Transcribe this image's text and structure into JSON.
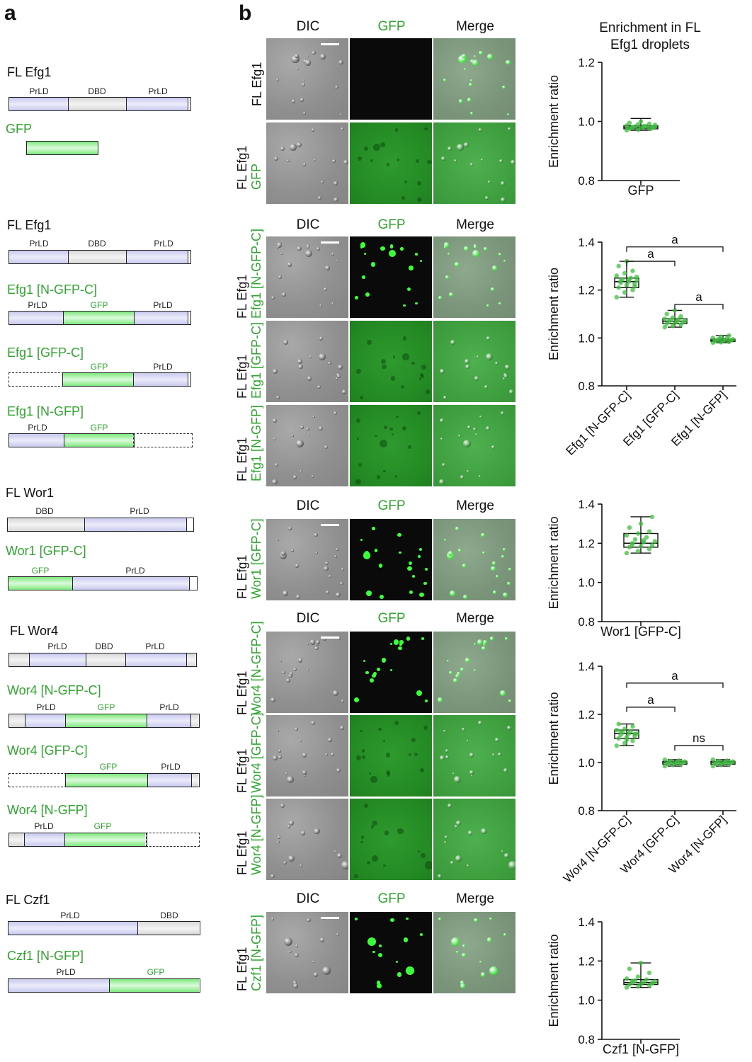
{
  "panel_a": {
    "letter": "a",
    "constructs": [
      {
        "title": "FL Efg1",
        "green": false
      },
      {
        "title": "GFP",
        "green": true
      },
      {
        "title": "FL Efg1",
        "green": false
      },
      {
        "title": "Efg1 [N-GFP-C]",
        "green": true
      },
      {
        "title": "Efg1 [GFP-C]",
        "green": true
      },
      {
        "title": "Efg1 [N-GFP]",
        "green": true
      },
      {
        "title": "FL Wor1",
        "green": false
      },
      {
        "title": "Wor1 [GFP-C]",
        "green": true
      },
      {
        "title": "FL Wor4",
        "green": false
      },
      {
        "title": "Wor4 [N-GFP-C]",
        "green": true
      },
      {
        "title": "Wor4 [GFP-C]",
        "green": true
      },
      {
        "title": "Wor4 [N-GFP]",
        "green": true
      },
      {
        "title": "FL Czf1",
        "green": false
      },
      {
        "title": "Czf1 [N-GFP]",
        "green": true
      }
    ],
    "domain_labels": {
      "prld": "PrLD",
      "dbd": "DBD",
      "gfp": "GFP"
    }
  },
  "panel_b": {
    "letter": "b",
    "columns": {
      "dic": "DIC",
      "gfp": "GFP",
      "merge": "Merge"
    },
    "row_labels": [
      {
        "line1": "FL Efg1",
        "line2": ""
      },
      {
        "line1": "FL Efg1",
        "line2": "GFP"
      },
      {
        "line1": "FL Efg1",
        "line2": "Efg1 [N-GFP-C]"
      },
      {
        "line1": "FL Efg1",
        "line2": "Efg1 [GFP-C]"
      },
      {
        "line1": "FL Efg1",
        "line2": "Efg1 [N-GFP]"
      },
      {
        "line1": "FL Efg1",
        "line2": "Wor1 [GFP-C]"
      },
      {
        "line1": "FL Efg1",
        "line2": "Wor4 [N-GFP-C]"
      },
      {
        "line1": "FL Efg1",
        "line2": "Wor4 [GFP-C]"
      },
      {
        "line1": "FL Efg1",
        "line2": "Wor4 [N-GFP]"
      },
      {
        "line1": "FL Efg1",
        "line2": "Czf1 [N-GFP]"
      }
    ]
  },
  "chart_data": [
    {
      "type": "box",
      "title": "Enrichment in FL Efg1 droplets",
      "ylabel": "Enrichment ratio",
      "ylim": [
        0.8,
        1.2
      ],
      "yticks": [
        "0.8",
        "1.0",
        "1.2"
      ],
      "categories": [
        "GFP"
      ],
      "boxes": [
        {
          "min": 0.97,
          "q1": 0.975,
          "median": 0.98,
          "q3": 0.985,
          "max": 1.01
        }
      ],
      "points": [
        [
          0.97,
          0.972,
          0.975,
          0.976,
          0.978,
          0.98,
          0.98,
          0.981,
          0.982,
          0.983,
          0.985,
          0.986,
          0.99,
          0.992,
          0.995,
          1.0,
          0.977,
          0.979,
          0.984,
          0.988
        ]
      ],
      "significance": []
    },
    {
      "type": "box",
      "title": "",
      "ylabel": "Enrichment ratio",
      "ylim": [
        0.8,
        1.4
      ],
      "yticks": [
        "0.8",
        "1.0",
        "1.2",
        "1.4"
      ],
      "categories": [
        "Efg1 [N-GFP-C]",
        "Efg1 [GFP-C]",
        "Efg1 [N-GFP]"
      ],
      "boxes": [
        {
          "min": 1.17,
          "q1": 1.21,
          "median": 1.235,
          "q3": 1.25,
          "max": 1.32
        },
        {
          "min": 1.045,
          "q1": 1.06,
          "median": 1.07,
          "q3": 1.08,
          "max": 1.115
        },
        {
          "min": 0.98,
          "q1": 0.985,
          "median": 0.99,
          "q3": 0.995,
          "max": 1.01
        }
      ],
      "points": [
        [
          1.17,
          1.19,
          1.2,
          1.21,
          1.22,
          1.225,
          1.23,
          1.235,
          1.24,
          1.245,
          1.25,
          1.26,
          1.27,
          1.28,
          1.3,
          1.32,
          1.215,
          1.238,
          1.242,
          1.255
        ],
        [
          1.045,
          1.05,
          1.055,
          1.06,
          1.062,
          1.065,
          1.068,
          1.07,
          1.072,
          1.075,
          1.078,
          1.08,
          1.085,
          1.09,
          1.1,
          1.115
        ],
        [
          0.98,
          0.982,
          0.984,
          0.986,
          0.988,
          0.99,
          0.99,
          0.992,
          0.994,
          0.996,
          0.998,
          1.0,
          1.005,
          1.01
        ]
      ],
      "significance": [
        {
          "from": 0,
          "to": 1,
          "label": "a",
          "level": 1.32
        },
        {
          "from": 0,
          "to": 2,
          "label": "a",
          "level": 1.38
        },
        {
          "from": 1,
          "to": 2,
          "label": "a",
          "level": 1.14
        }
      ]
    },
    {
      "type": "box",
      "title": "",
      "ylabel": "Enrichment ratio",
      "ylim": [
        0.8,
        1.4
      ],
      "yticks": [
        "0.8",
        "1.0",
        "1.2",
        "1.4"
      ],
      "categories": [
        "Wor1 [GFP-C]"
      ],
      "boxes": [
        {
          "min": 1.15,
          "q1": 1.18,
          "median": 1.2,
          "q3": 1.25,
          "max": 1.335
        }
      ],
      "points": [
        [
          1.15,
          1.16,
          1.17,
          1.18,
          1.185,
          1.19,
          1.2,
          1.205,
          1.21,
          1.22,
          1.23,
          1.24,
          1.25,
          1.26,
          1.28,
          1.3,
          1.335,
          1.195,
          1.215
        ]
      ],
      "significance": []
    },
    {
      "type": "box",
      "title": "",
      "ylabel": "Enrichment ratio",
      "ylim": [
        0.8,
        1.4
      ],
      "yticks": [
        "0.8",
        "1.0",
        "1.2",
        "1.4"
      ],
      "categories": [
        "Wor4 [N-GFP-C]",
        "Wor4 [GFP-C]",
        "Wor4 [N-GFP]"
      ],
      "boxes": [
        {
          "min": 1.07,
          "q1": 1.1,
          "median": 1.12,
          "q3": 1.135,
          "max": 1.16
        },
        {
          "min": 0.985,
          "q1": 0.993,
          "median": 1.0,
          "q3": 1.005,
          "max": 1.012
        },
        {
          "min": 0.985,
          "q1": 0.993,
          "median": 1.0,
          "q3": 1.005,
          "max": 1.012
        }
      ],
      "points": [
        [
          1.07,
          1.08,
          1.09,
          1.1,
          1.105,
          1.11,
          1.115,
          1.12,
          1.12,
          1.125,
          1.13,
          1.135,
          1.14,
          1.15,
          1.16,
          1.095,
          1.118,
          1.128
        ],
        [
          0.985,
          0.99,
          0.993,
          0.995,
          0.998,
          1.0,
          1.0,
          1.002,
          1.004,
          1.006,
          1.008,
          1.012
        ],
        [
          0.985,
          0.99,
          0.993,
          0.995,
          0.998,
          1.0,
          1.0,
          1.002,
          1.004,
          1.006,
          1.008,
          1.012
        ]
      ],
      "significance": [
        {
          "from": 0,
          "to": 1,
          "label": "a",
          "level": 1.23
        },
        {
          "from": 0,
          "to": 2,
          "label": "a",
          "level": 1.33
        },
        {
          "from": 1,
          "to": 2,
          "label": "ns",
          "level": 1.07
        }
      ]
    },
    {
      "type": "box",
      "title": "",
      "ylabel": "Enrichment ratio",
      "ylim": [
        0.8,
        1.4
      ],
      "yticks": [
        "0.8",
        "1.0",
        "1.2",
        "1.4"
      ],
      "categories": [
        "Czf1 [N-GFP]"
      ],
      "boxes": [
        {
          "min": 1.065,
          "q1": 1.08,
          "median": 1.09,
          "q3": 1.105,
          "max": 1.19
        }
      ],
      "points": [
        [
          1.065,
          1.07,
          1.075,
          1.08,
          1.083,
          1.086,
          1.09,
          1.092,
          1.095,
          1.1,
          1.105,
          1.11,
          1.12,
          1.14,
          1.16,
          1.19,
          1.088,
          1.098
        ]
      ],
      "significance": []
    }
  ]
}
